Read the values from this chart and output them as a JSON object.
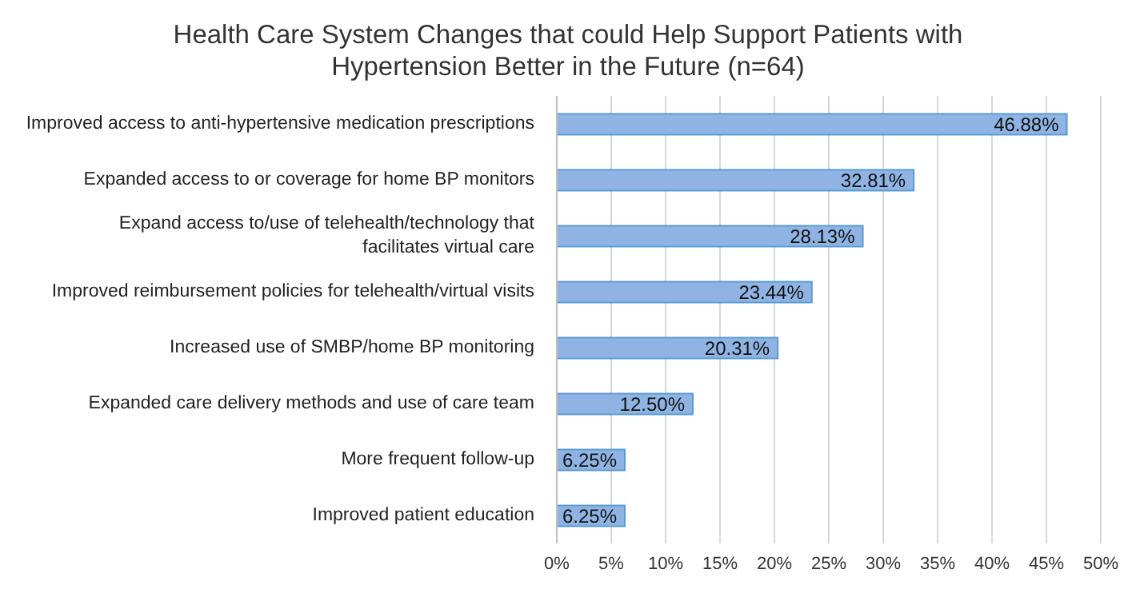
{
  "chart_data": {
    "type": "bar",
    "orientation": "horizontal",
    "title": "Health Care System Changes that could Help Support Patients with Hypertension Better in the Future (n=64)",
    "categories": [
      "Improved access to anti-hypertensive medication prescriptions",
      "Expanded access to or coverage for home BP monitors",
      "Expand access to/use of telehealth/technology that facilitates virtual care",
      "Improved reimbursement policies for telehealth/virtual visits",
      "Increased use of SMBP/home BP monitoring",
      "Expanded care delivery methods and use of care team",
      "More frequent follow-up",
      "Improved patient education"
    ],
    "values": [
      46.88,
      32.81,
      28.13,
      23.44,
      20.31,
      12.5,
      6.25,
      6.25
    ],
    "value_labels": [
      "46.88%",
      "32.81%",
      "28.13%",
      "23.44%",
      "20.31%",
      "12.50%",
      "6.25%",
      "6.25%"
    ],
    "color": "#8fb4e3",
    "xlim": [
      0,
      50
    ],
    "xticks": [
      {
        "value": 0,
        "label": "0%"
      },
      {
        "value": 5,
        "label": "5%"
      },
      {
        "value": 10,
        "label": "10%"
      },
      {
        "value": 15,
        "label": "15%"
      },
      {
        "value": 20,
        "label": "20%"
      },
      {
        "value": 25,
        "label": "25%"
      },
      {
        "value": 30,
        "label": "30%"
      },
      {
        "value": 35,
        "label": "35%"
      },
      {
        "value": 40,
        "label": "40%"
      },
      {
        "value": 45,
        "label": "45%"
      },
      {
        "value": 50,
        "label": "50%"
      }
    ],
    "grid": "x"
  }
}
